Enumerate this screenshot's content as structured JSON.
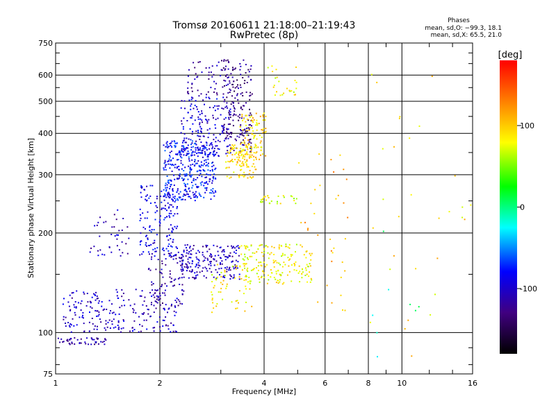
{
  "chart_data": {
    "type": "scatter",
    "title": "Tromsø 20160611 21:18:00–21:19:43",
    "subtitle": "RwPretec (8p)",
    "xlabel": "Frequency [MHz]",
    "ylabel": "Stationary phase Virtual Height [km]",
    "xscale": "log",
    "yscale": "log",
    "xlim": [
      1,
      16
    ],
    "ylim": [
      75,
      750
    ],
    "x_ticks": [
      1,
      2,
      4,
      6,
      8,
      10,
      16
    ],
    "x_tick_labels": [
      "1",
      "2",
      "4",
      "6",
      "8",
      "10",
      "16"
    ],
    "y_ticks": [
      75,
      100,
      200,
      300,
      400,
      500,
      600,
      750
    ],
    "y_tick_labels": [
      "75",
      "100",
      "200",
      "300",
      "400",
      "500",
      "600",
      "750"
    ],
    "grid": true,
    "phases": {
      "heading": "Phases",
      "line_o": "mean, sd,O: −99.3, 18.1",
      "line_x": "mean, sd,X: 65.5, 21.0"
    },
    "colorbar": {
      "label": "[deg]",
      "range": [
        -180,
        180
      ],
      "ticks": [
        100,
        0,
        -100
      ],
      "tick_labels": [
        "100",
        "0",
        "-100"
      ],
      "colors": [
        "#ff0000",
        "#ff8000",
        "#ffff00",
        "#00ff00",
        "#00ffff",
        "#0000ff",
        "#400080",
        "#000000"
      ]
    },
    "clusters": [
      {
        "x": [
          0.96,
          1.4
        ],
        "y": [
          92,
          97
        ],
        "phase": -110,
        "n": 55
      },
      {
        "x": [
          1.05,
          2.25
        ],
        "y": [
          100,
          135
        ],
        "phase": -100,
        "n": 220
      },
      {
        "x": [
          1.25,
          1.65
        ],
        "y": [
          170,
          235
        ],
        "phase": -105,
        "n": 40
      },
      {
        "x": [
          1.75,
          2.25
        ],
        "y": [
          170,
          280
        ],
        "phase": -90,
        "n": 160
      },
      {
        "x": [
          1.85,
          2.35
        ],
        "y": [
          120,
          175
        ],
        "phase": -115,
        "n": 90
      },
      {
        "x": [
          2.05,
          2.9
        ],
        "y": [
          250,
          380
        ],
        "phase": -80,
        "n": 380
      },
      {
        "x": [
          2.3,
          3.2
        ],
        "y": [
          340,
          520
        ],
        "phase": -95,
        "n": 170
      },
      {
        "x": [
          2.4,
          3.2
        ],
        "y": [
          520,
          670
        ],
        "phase": -115,
        "n": 55
      },
      {
        "x": [
          3.05,
          3.7
        ],
        "y": [
          350,
          670
        ],
        "phase": -125,
        "n": 190
      },
      {
        "x": [
          3.1,
          3.8
        ],
        "y": [
          290,
          370
        ],
        "phase": 90,
        "n": 110
      },
      {
        "x": [
          3.4,
          4.05
        ],
        "y": [
          330,
          460
        ],
        "phase": 95,
        "n": 100
      },
      {
        "x": [
          2.3,
          3.4
        ],
        "y": [
          145,
          185
        ],
        "phase": -105,
        "n": 200
      },
      {
        "x": [
          2.8,
          3.7
        ],
        "y": [
          115,
          165
        ],
        "phase": 85,
        "n": 60
      },
      {
        "x": [
          3.4,
          5.5
        ],
        "y": [
          140,
          185
        ],
        "phase": 80,
        "n": 190
      },
      {
        "x": [
          3.9,
          5.0
        ],
        "y": [
          245,
          260
        ],
        "phase": 75,
        "n": 28
      },
      {
        "x": [
          4.1,
          5.0
        ],
        "y": [
          520,
          640
        ],
        "phase": 80,
        "n": 25
      },
      {
        "x": [
          5.0,
          7.0
        ],
        "y": [
          115,
          360
        ],
        "phase": 110,
        "n": 35
      },
      {
        "x": [
          7.5,
          16.0
        ],
        "y": [
          80,
          660
        ],
        "phase": 90,
        "n": 30
      },
      {
        "x": [
          8.0,
          12.0
        ],
        "y": [
          75,
          300
        ],
        "phase": -10,
        "n": 8
      }
    ]
  }
}
